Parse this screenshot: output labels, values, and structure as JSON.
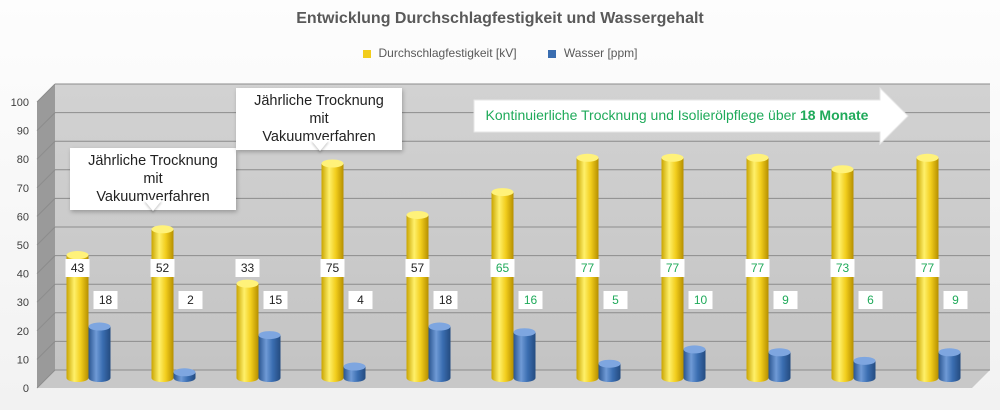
{
  "title": "Entwicklung Durchschlagfestigkeit und Wassergehalt",
  "legend": [
    {
      "label": "Durchschlagfestigkeit [kV]",
      "color": "#f2cd1c"
    },
    {
      "label": "Wasser [ppm]",
      "color": "#3a6db0"
    }
  ],
  "callouts": [
    {
      "line1": "Jährliche Trocknung mit",
      "line2": "Vakuumverfahren"
    },
    {
      "line1": "Jährliche Trocknung mit",
      "line2": "Vakuumverfahren"
    }
  ],
  "banner": {
    "text": "Kontinuierliche Trocknung und Isolierölpflege über ",
    "bold": "18 Monate",
    "color": "#1faa5a"
  },
  "label_colors": {
    "normal": "#222222",
    "highlight": "#1faa5a"
  },
  "chart_data": {
    "type": "bar",
    "title": "Entwicklung Durchschlagfestigkeit und Wassergehalt",
    "ylim": [
      0,
      100
    ],
    "yticks": [
      0,
      10,
      20,
      30,
      40,
      50,
      60,
      70,
      80,
      90,
      100
    ],
    "grid": true,
    "legend_position": "top",
    "categories": [
      "",
      "",
      "",
      "",
      "",
      "",
      "",
      "",
      "",
      "",
      ""
    ],
    "series": [
      {
        "name": "Durchschlagfestigkeit [kV]",
        "values": [
          43,
          52,
          33,
          75,
          57,
          65,
          77,
          77,
          77,
          73,
          77
        ]
      },
      {
        "name": "Wasser [ppm]",
        "values": [
          18,
          2,
          15,
          4,
          18,
          16,
          5,
          10,
          9,
          6,
          9
        ]
      }
    ],
    "highlight_from_index": 5
  }
}
